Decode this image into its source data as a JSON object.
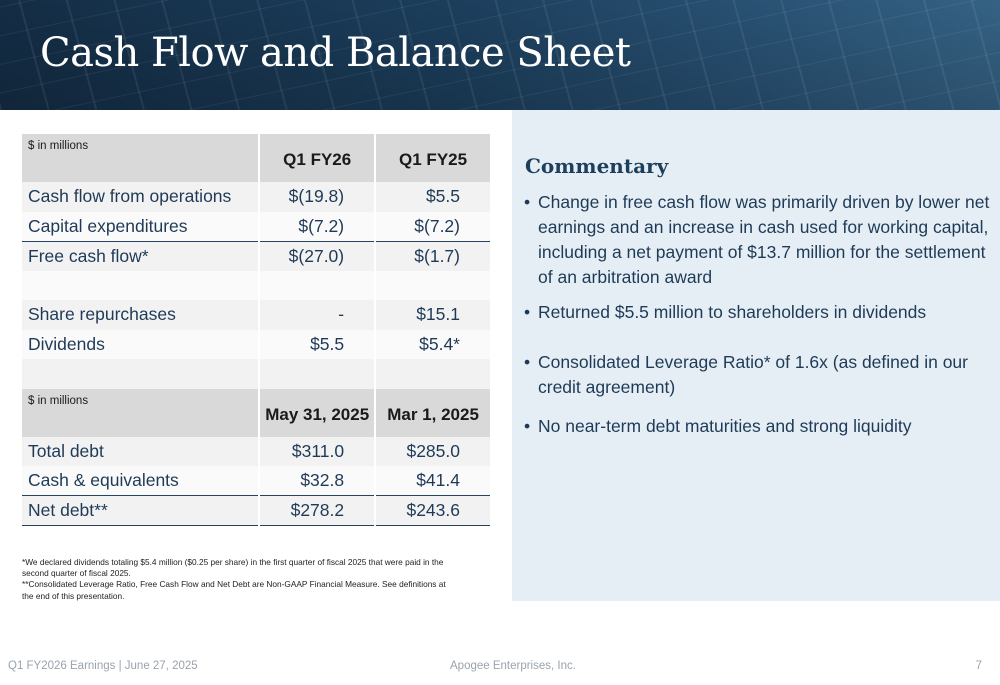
{
  "title": "Cash Flow and Balance Sheet",
  "cash_flow": {
    "units": "$ in millions",
    "col1": "Q1 FY26",
    "col2": "Q1 FY25",
    "rows": [
      {
        "label": "Cash flow from operations",
        "v1": "$(19.8)",
        "v2": "$5.5"
      },
      {
        "label": "Capital expenditures",
        "v1": "$(7.2)",
        "v2": "$(7.2)"
      },
      {
        "label": "Free cash flow*",
        "v1": "$(27.0)",
        "v2": "$(1.7)"
      },
      {
        "label": "",
        "v1": "",
        "v2": ""
      },
      {
        "label": "Share repurchases",
        "v1": "-",
        "v2": "$15.1"
      },
      {
        "label": "Dividends",
        "v1": "$5.5",
        "v2": "$5.4*"
      },
      {
        "label": "",
        "v1": "",
        "v2": ""
      }
    ]
  },
  "balance_sheet": {
    "units": "$ in millions",
    "col1": "May 31, 2025",
    "col2": "Mar 1, 2025",
    "rows": [
      {
        "label": "Total debt",
        "v1": "$311.0",
        "v2": "$285.0"
      },
      {
        "label": "Cash & equivalents",
        "v1": "$32.8",
        "v2": "$41.4"
      },
      {
        "label": "Net debt**",
        "v1": "$278.2",
        "v2": "$243.6"
      }
    ]
  },
  "footnote": {
    "line1": "*We declared dividends totaling $5.4 million ($0.25 per share) in the first quarter of fiscal 2025 that were paid in the second quarter of fiscal 2025.",
    "line2": "**Consolidated Leverage Ratio, Free Cash Flow and Net Debt are Non-GAAP Financial Measure. See definitions at the end of this presentation."
  },
  "commentary": {
    "heading": "Commentary",
    "bullets": [
      "Change in free cash flow was primarily driven by lower net earnings and an increase in cash used for working capital, including a net payment of $13.7 million for the settlement of an arbitration award",
      "Returned $5.5 million to shareholders in dividends",
      "Consolidated Leverage Ratio* of 1.6x (as defined in our credit agreement)",
      "No near-term debt maturities and strong liquidity"
    ]
  },
  "footer": {
    "left": "Q1 FY2026 Earnings  |  June 27, 2025",
    "center": "Apogee Enterprises, Inc.",
    "page": "7"
  }
}
